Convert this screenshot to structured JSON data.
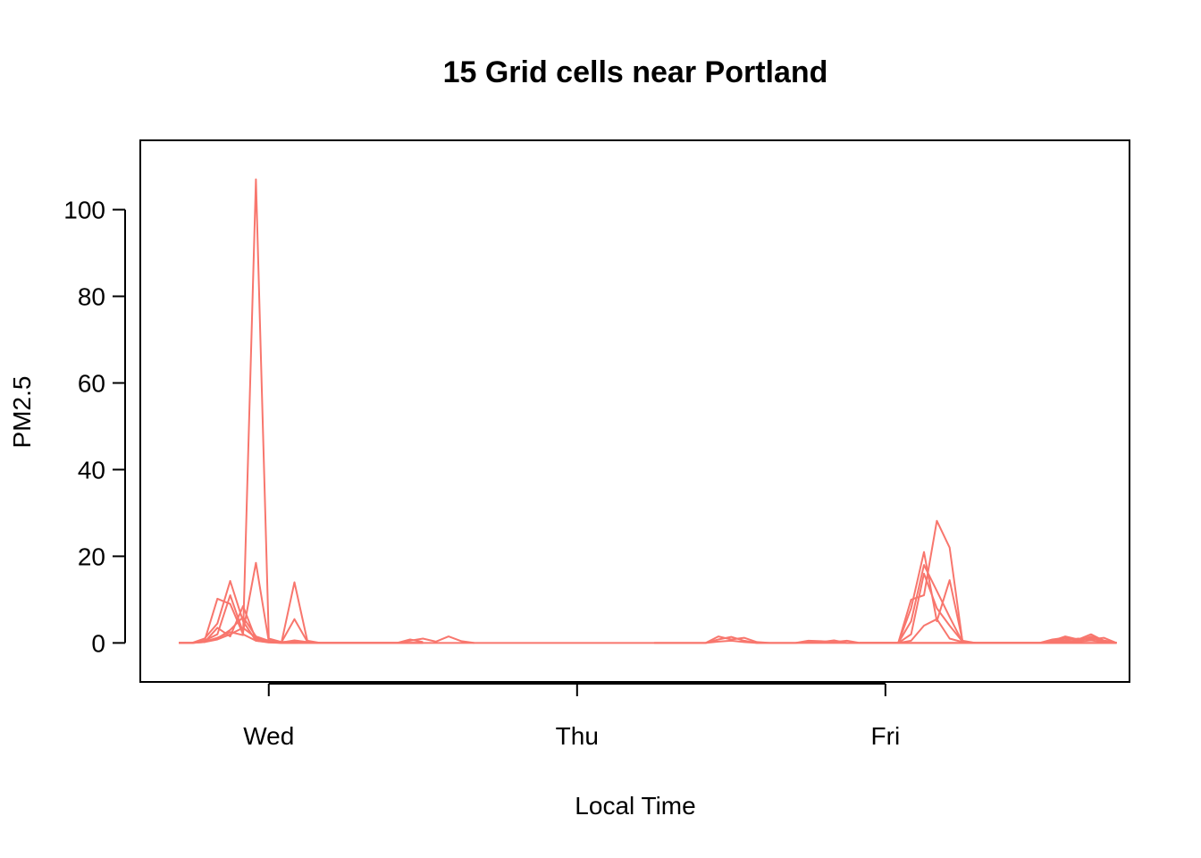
{
  "chart_data": {
    "type": "line",
    "title": "15 Grid cells near Portland",
    "xlabel": "Local Time",
    "ylabel": "PM2.5",
    "x_unit": "hours",
    "x_ticks": [
      {
        "label": "Wed",
        "value": 24
      },
      {
        "label": "Thu",
        "value": 48
      },
      {
        "label": "Fri",
        "value": 72
      }
    ],
    "y_ticks": [
      0,
      20,
      40,
      60,
      80,
      100
    ],
    "xlim": [
      14,
      91
    ],
    "ylim": [
      -9,
      116
    ],
    "grid": false,
    "legend": "none",
    "color": "#F8766D",
    "series": [
      {
        "x": [
          17,
          18,
          19,
          20,
          21,
          22,
          23,
          24,
          25,
          26,
          27,
          28,
          29,
          30,
          31,
          32,
          33,
          34,
          35,
          36
        ],
        "y": [
          0,
          0,
          0.3,
          1.2,
          2.5,
          1.8,
          107,
          1.0,
          0.2,
          0.4,
          0.1,
          0,
          0,
          0,
          0,
          0,
          0,
          0,
          0,
          0
        ]
      },
      {
        "x": [
          17,
          18,
          19,
          20,
          21,
          22,
          23,
          24,
          25,
          26,
          27,
          28,
          29,
          30,
          31,
          32,
          33,
          34,
          35,
          36
        ],
        "y": [
          0,
          0,
          0.5,
          10.2,
          9.0,
          2.0,
          0.5,
          0.2,
          0,
          0,
          0,
          0,
          0,
          0,
          0,
          0,
          0,
          0,
          0,
          0
        ]
      },
      {
        "x": [
          17,
          18,
          19,
          20,
          21,
          22,
          23,
          24,
          25,
          26,
          27,
          28,
          29,
          30,
          31,
          32,
          33,
          34,
          35,
          36
        ],
        "y": [
          0,
          0,
          1.0,
          4.5,
          14.3,
          5.0,
          0.5,
          0.1,
          0,
          0,
          0,
          0,
          0,
          0,
          0,
          0,
          0,
          0,
          0,
          0
        ]
      },
      {
        "x": [
          17,
          18,
          19,
          20,
          21,
          22,
          23,
          24,
          25,
          26,
          27,
          28,
          29,
          30,
          31,
          32,
          33,
          34,
          35,
          36
        ],
        "y": [
          0,
          0,
          0.5,
          2.0,
          11.0,
          2.5,
          18.5,
          0.3,
          0,
          0,
          0.2,
          0,
          0,
          0,
          0,
          0,
          0,
          0,
          0,
          0
        ]
      },
      {
        "x": [
          17,
          18,
          19,
          20,
          21,
          22,
          23,
          24,
          25,
          26,
          27,
          28,
          29,
          30,
          31,
          32,
          33,
          34,
          35,
          36
        ],
        "y": [
          0,
          0,
          0.3,
          1.0,
          3.0,
          6.0,
          1.5,
          0.5,
          0.2,
          14.0,
          0.5,
          0,
          0,
          0,
          0,
          0,
          0,
          0,
          0,
          0
        ]
      },
      {
        "x": [
          17,
          18,
          19,
          20,
          21,
          22,
          23,
          24,
          25,
          26,
          27,
          28,
          29,
          30,
          31,
          32,
          33,
          34,
          35,
          36
        ],
        "y": [
          0,
          0,
          0.2,
          3.5,
          1.5,
          8.5,
          0.8,
          0.4,
          0.2,
          5.5,
          0.3,
          0,
          0,
          0,
          0,
          0,
          0,
          0,
          0.8,
          0.2
        ]
      },
      {
        "x": [
          17,
          18,
          19,
          20,
          21,
          22,
          23,
          24,
          25,
          26,
          27,
          28,
          29,
          30,
          31,
          32,
          33,
          34,
          35,
          36,
          37,
          38,
          39,
          40
        ],
        "y": [
          0,
          0,
          0.2,
          0.8,
          2.0,
          3.5,
          1.2,
          0.2,
          0.1,
          0.6,
          0.2,
          0,
          0,
          0,
          0,
          0,
          0,
          0,
          0.5,
          1.0,
          0.3,
          1.5,
          0.4,
          0
        ]
      },
      {
        "x": [
          36,
          37,
          38,
          39,
          40,
          41,
          42,
          43,
          44,
          45,
          46,
          47,
          48,
          49,
          50,
          51,
          52,
          53,
          54,
          55,
          56,
          57,
          58,
          59,
          60,
          61,
          62,
          63,
          64,
          65,
          66,
          67,
          68,
          69,
          70,
          71,
          72,
          73,
          74,
          75,
          76,
          77,
          78,
          79,
          80,
          81,
          82,
          83,
          84,
          85,
          86,
          87,
          88,
          89,
          90
        ],
        "y": [
          0,
          0,
          0,
          0,
          0,
          0,
          0,
          0,
          0,
          0,
          0,
          0,
          0,
          0,
          0,
          0,
          0,
          0,
          0,
          0,
          0,
          0,
          0,
          1.5,
          0.8,
          1.2,
          0.2,
          0,
          0,
          0,
          0,
          0,
          0,
          0,
          0,
          0,
          0,
          0,
          0,
          0,
          0,
          0,
          0,
          0,
          0,
          0,
          0,
          0,
          0,
          0,
          0,
          0,
          0,
          0,
          0
        ]
      },
      {
        "x": [
          54,
          55,
          56,
          57,
          58,
          59,
          60,
          61,
          62,
          63,
          64,
          65,
          66,
          67,
          68,
          69,
          70,
          71,
          72,
          73,
          74,
          75,
          76,
          77,
          78,
          79,
          80,
          81,
          82,
          83,
          84,
          85,
          86,
          87,
          88,
          89,
          90
        ],
        "y": [
          0,
          0,
          0,
          0,
          0,
          0.8,
          1.4,
          0.5,
          0,
          0,
          0,
          0,
          0.3,
          0.2,
          0.6,
          0,
          0,
          0,
          0,
          0,
          0,
          0,
          0,
          0,
          0,
          0,
          0,
          0,
          0,
          0,
          0,
          0,
          0,
          0,
          0,
          0,
          0
        ]
      },
      {
        "x": [
          54,
          55,
          56,
          57,
          58,
          59,
          60,
          61,
          62,
          63,
          64,
          65,
          66,
          67,
          68,
          69,
          70,
          71,
          72,
          73,
          74,
          75,
          76,
          77,
          78,
          79,
          80,
          81,
          82,
          83,
          84,
          85,
          86,
          87,
          88,
          89,
          90
        ],
        "y": [
          0,
          0,
          0,
          0,
          0,
          0.3,
          0.5,
          0.2,
          0,
          0,
          0,
          0,
          0.5,
          0.4,
          0.2,
          0.5,
          0,
          0,
          0,
          0,
          0,
          0,
          0,
          0,
          0,
          0,
          0,
          0,
          0,
          0,
          0,
          0,
          0,
          0,
          0,
          0,
          0
        ]
      },
      {
        "x": [
          70,
          71,
          72,
          73,
          74,
          75,
          76,
          77,
          78,
          79,
          80,
          81,
          82,
          83,
          84,
          85,
          86,
          87,
          88,
          89,
          90
        ],
        "y": [
          0,
          0,
          0,
          0,
          10.0,
          11.0,
          28.2,
          22.0,
          0.3,
          0,
          0,
          0,
          0,
          0,
          0,
          0.3,
          1.0,
          0.5,
          1.2,
          0.3,
          0
        ]
      },
      {
        "x": [
          70,
          71,
          72,
          73,
          74,
          75,
          76,
          77,
          78,
          79,
          80,
          81,
          82,
          83,
          84,
          85,
          86,
          87,
          88,
          89,
          90
        ],
        "y": [
          0,
          0,
          0,
          0,
          8.0,
          21.0,
          5.0,
          14.5,
          0.5,
          0,
          0,
          0,
          0,
          0,
          0,
          0.5,
          1.5,
          0.8,
          2.0,
          0.5,
          0
        ]
      },
      {
        "x": [
          70,
          71,
          72,
          73,
          74,
          75,
          76,
          77,
          78,
          79,
          80,
          81,
          82,
          83,
          84,
          85,
          86,
          87,
          88,
          89,
          90
        ],
        "y": [
          0,
          0,
          0,
          0,
          5.0,
          18.0,
          12.0,
          6.0,
          0.2,
          0,
          0,
          0,
          0,
          0,
          0,
          0.8,
          1.2,
          0.5,
          1.5,
          0.6,
          0
        ]
      },
      {
        "x": [
          70,
          71,
          72,
          73,
          74,
          75,
          76,
          77,
          78,
          79,
          80,
          81,
          82,
          83,
          84,
          85,
          86,
          87,
          88,
          89,
          90
        ],
        "y": [
          0,
          0,
          0,
          0,
          2.0,
          16.0,
          8.0,
          4.0,
          0.3,
          0,
          0,
          0,
          0,
          0,
          0,
          0.4,
          0.6,
          1.0,
          0.8,
          1.2,
          0
        ]
      },
      {
        "x": [
          70,
          71,
          72,
          73,
          74,
          75,
          76,
          77,
          78,
          79,
          80,
          81,
          82,
          83,
          84,
          85,
          86,
          87,
          88,
          89,
          90
        ],
        "y": [
          0,
          0,
          0,
          0,
          0.5,
          4.0,
          5.5,
          1.0,
          0.2,
          0,
          0,
          0,
          0,
          0,
          0,
          0.2,
          0.4,
          0.3,
          0.6,
          0.2,
          0
        ]
      }
    ]
  }
}
